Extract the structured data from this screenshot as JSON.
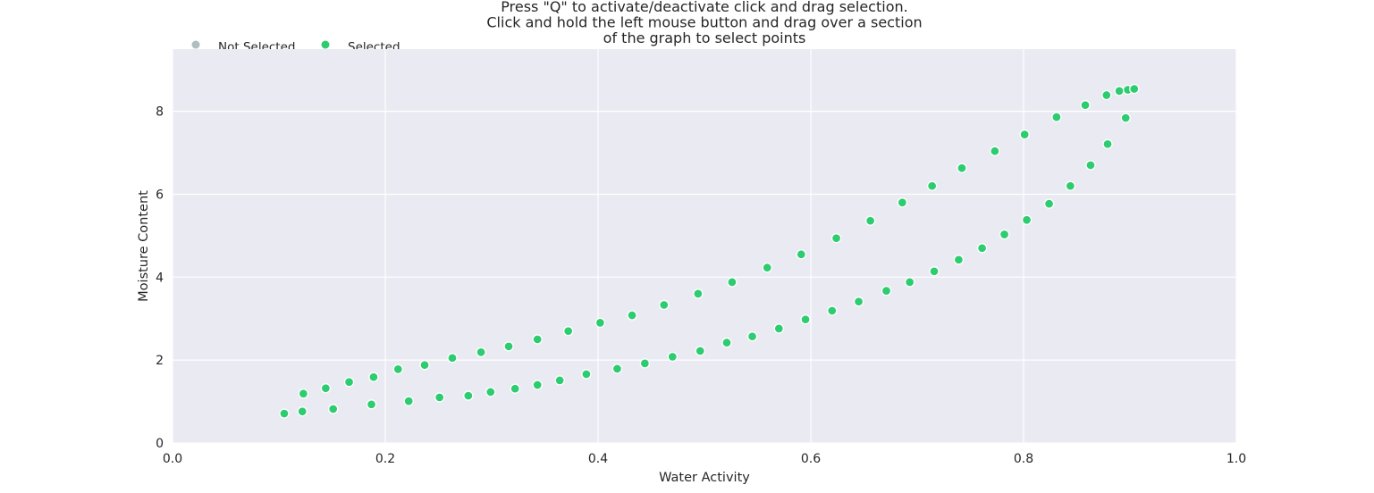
{
  "chart_data": {
    "type": "scatter",
    "title": [
      "Press \"Q\" to activate/deactivate click and drag selection.",
      "Click and hold the left mouse button and drag over a section",
      "of the graph to select points"
    ],
    "xlabel": "Water Activity",
    "ylabel": "Moisture Content",
    "xlim": [
      0.0,
      1.0
    ],
    "ylim": [
      0,
      9.5
    ],
    "x_ticks": [
      0.0,
      0.2,
      0.4,
      0.6,
      0.8,
      1.0
    ],
    "x_tick_labels": [
      "0.0",
      "0.2",
      "0.4",
      "0.6",
      "0.8",
      "1.0"
    ],
    "y_ticks": [
      0,
      2,
      4,
      6,
      8
    ],
    "y_tick_labels": [
      "0",
      "2",
      "4",
      "6",
      "8"
    ],
    "grid": true,
    "background_color": "#eaeaf2",
    "grid_color": "#ffffff",
    "legend_position": "upper-left, above plot",
    "legend": [
      {
        "label": "Not Selected",
        "color": "#b0bec0"
      },
      {
        "label": "Selected",
        "color": "#2ecc71"
      }
    ],
    "series": [
      {
        "name": "Selected",
        "color": "#2ecc71",
        "points": [
          [
            0.105,
            0.71
          ],
          [
            0.122,
            0.76
          ],
          [
            0.151,
            0.82
          ],
          [
            0.187,
            0.93
          ],
          [
            0.222,
            1.01
          ],
          [
            0.251,
            1.1
          ],
          [
            0.278,
            1.14
          ],
          [
            0.299,
            1.23
          ],
          [
            0.322,
            1.31
          ],
          [
            0.343,
            1.4
          ],
          [
            0.364,
            1.51
          ],
          [
            0.389,
            1.66
          ],
          [
            0.418,
            1.79
          ],
          [
            0.444,
            1.92
          ],
          [
            0.47,
            2.08
          ],
          [
            0.496,
            2.22
          ],
          [
            0.521,
            2.42
          ],
          [
            0.545,
            2.57
          ],
          [
            0.57,
            2.76
          ],
          [
            0.595,
            2.98
          ],
          [
            0.62,
            3.19
          ],
          [
            0.645,
            3.41
          ],
          [
            0.671,
            3.67
          ],
          [
            0.693,
            3.88
          ],
          [
            0.716,
            4.14
          ],
          [
            0.739,
            4.42
          ],
          [
            0.761,
            4.7
          ],
          [
            0.782,
            5.03
          ],
          [
            0.803,
            5.38
          ],
          [
            0.824,
            5.77
          ],
          [
            0.844,
            6.2
          ],
          [
            0.863,
            6.7
          ],
          [
            0.879,
            7.21
          ],
          [
            0.896,
            7.84
          ],
          [
            0.123,
            1.19
          ],
          [
            0.144,
            1.32
          ],
          [
            0.166,
            1.47
          ],
          [
            0.189,
            1.59
          ],
          [
            0.212,
            1.78
          ],
          [
            0.237,
            1.88
          ],
          [
            0.263,
            2.05
          ],
          [
            0.29,
            2.19
          ],
          [
            0.316,
            2.33
          ],
          [
            0.343,
            2.5
          ],
          [
            0.372,
            2.7
          ],
          [
            0.402,
            2.9
          ],
          [
            0.432,
            3.08
          ],
          [
            0.462,
            3.33
          ],
          [
            0.494,
            3.6
          ],
          [
            0.526,
            3.88
          ],
          [
            0.559,
            4.23
          ],
          [
            0.591,
            4.55
          ],
          [
            0.624,
            4.94
          ],
          [
            0.656,
            5.36
          ],
          [
            0.686,
            5.8
          ],
          [
            0.714,
            6.2
          ],
          [
            0.742,
            6.63
          ],
          [
            0.773,
            7.04
          ],
          [
            0.801,
            7.44
          ],
          [
            0.831,
            7.86
          ],
          [
            0.858,
            8.15
          ],
          [
            0.878,
            8.39
          ],
          [
            0.89,
            8.49
          ],
          [
            0.898,
            8.52
          ],
          [
            0.904,
            8.54
          ]
        ]
      }
    ]
  }
}
